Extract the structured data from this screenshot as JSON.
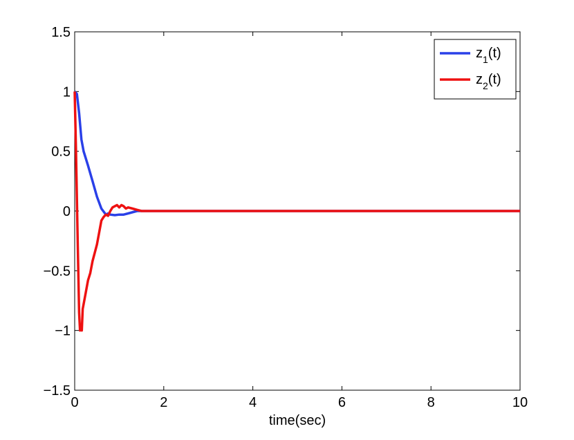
{
  "chart_data": {
    "type": "line",
    "xlabel": "time(sec)",
    "ylabel": "",
    "title": "",
    "xlim": [
      0,
      10
    ],
    "ylim": [
      -1.5,
      1.5
    ],
    "xticks": [
      0,
      2,
      4,
      6,
      8,
      10
    ],
    "yticks": [
      -1.5,
      -1,
      -0.5,
      0,
      0.5,
      1,
      1.5
    ],
    "xtick_labels": [
      "0",
      "2",
      "4",
      "6",
      "8",
      "10"
    ],
    "ytick_labels": [
      "−1.5",
      "−1",
      "−0.5",
      "0",
      "0.5",
      "1",
      "1.5"
    ],
    "grid": false,
    "legend_position": "top-right",
    "series": [
      {
        "name_main": "z",
        "name_sub": "1",
        "name_tail": "(t)",
        "color": "#2a40e8",
        "x": [
          0,
          0.05,
          0.1,
          0.15,
          0.2,
          0.3,
          0.4,
          0.5,
          0.6,
          0.7,
          0.75,
          0.8,
          0.9,
          1.0,
          1.1,
          1.2,
          1.4,
          1.6,
          1.8,
          2.0,
          3,
          4,
          5,
          6,
          7,
          8,
          9,
          10
        ],
        "y": [
          1.0,
          0.98,
          0.82,
          0.6,
          0.5,
          0.38,
          0.25,
          0.12,
          0.02,
          -0.03,
          -0.02,
          -0.03,
          -0.035,
          -0.03,
          -0.03,
          -0.02,
          0.0,
          0.0,
          0.0,
          0.0,
          0,
          0,
          0,
          0,
          0,
          0,
          0,
          0
        ]
      },
      {
        "name_main": "z",
        "name_sub": "2",
        "name_tail": "(t)",
        "color": "#ee1111",
        "x": [
          0,
          0.03,
          0.07,
          0.1,
          0.12,
          0.14,
          0.16,
          0.18,
          0.2,
          0.25,
          0.3,
          0.35,
          0.4,
          0.45,
          0.5,
          0.55,
          0.6,
          0.65,
          0.7,
          0.75,
          0.8,
          0.85,
          0.9,
          0.95,
          1.0,
          1.05,
          1.1,
          1.15,
          1.2,
          1.3,
          1.4,
          1.5,
          1.6,
          1.8,
          2.0,
          3,
          4,
          5,
          6,
          7,
          8,
          9,
          10
        ],
        "y": [
          1.0,
          0.5,
          -0.3,
          -0.85,
          -1.0,
          -0.98,
          -1.0,
          -0.82,
          -0.78,
          -0.68,
          -0.58,
          -0.52,
          -0.42,
          -0.35,
          -0.28,
          -0.18,
          -0.08,
          -0.05,
          -0.03,
          -0.04,
          0.0,
          0.03,
          0.04,
          0.05,
          0.03,
          0.05,
          0.04,
          0.02,
          0.03,
          0.02,
          0.01,
          0.0,
          0.0,
          0.0,
          0.0,
          0,
          0,
          0,
          0,
          0,
          0,
          0,
          0
        ]
      }
    ]
  }
}
